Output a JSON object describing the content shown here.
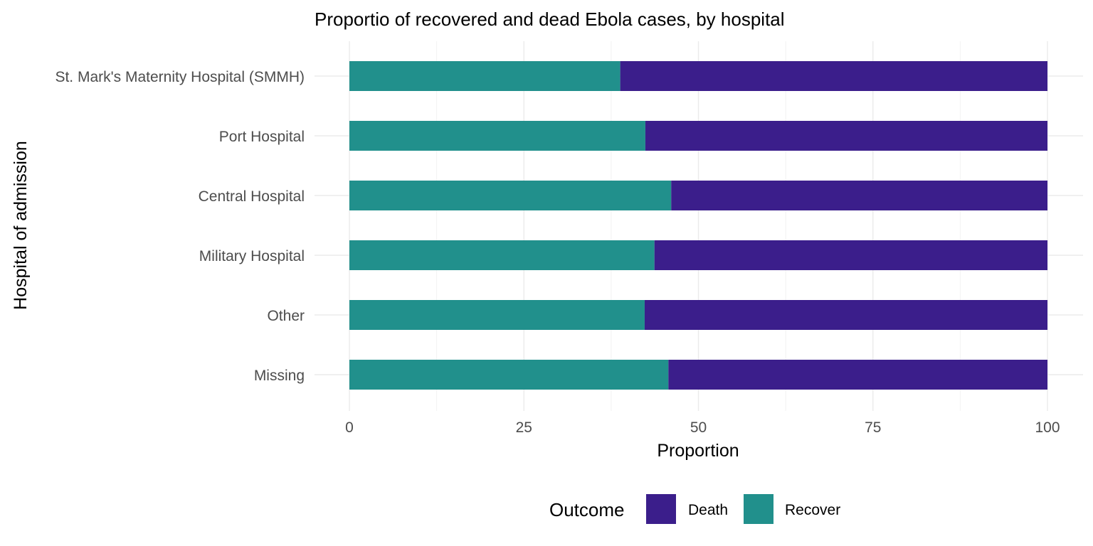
{
  "chart_data": {
    "type": "bar",
    "orientation": "horizontal",
    "stacked": true,
    "title": "Proportio of recovered and dead Ebola cases, by hospital",
    "xlabel": "Proportion",
    "ylabel": "Hospital of admission",
    "xlim": [
      0,
      100
    ],
    "xticks": [
      "0",
      "25",
      "50",
      "75",
      "100"
    ],
    "grid": true,
    "legend_position": "bottom",
    "legend_title": "Outcome",
    "categories": [
      "St. Mark's Maternity Hospital (SMMH)",
      "Port Hospital",
      "Central Hospital",
      "Military Hospital",
      "Other",
      "Missing"
    ],
    "series": [
      {
        "name": "Recover",
        "color": "#21908c",
        "values": [
          38.8,
          42.4,
          46.1,
          43.7,
          42.3,
          45.7
        ]
      },
      {
        "name": "Death",
        "color": "#3b1e8b",
        "values": [
          61.2,
          57.6,
          53.9,
          56.3,
          57.7,
          54.3
        ]
      }
    ],
    "legend_order": [
      "Death",
      "Recover"
    ]
  }
}
